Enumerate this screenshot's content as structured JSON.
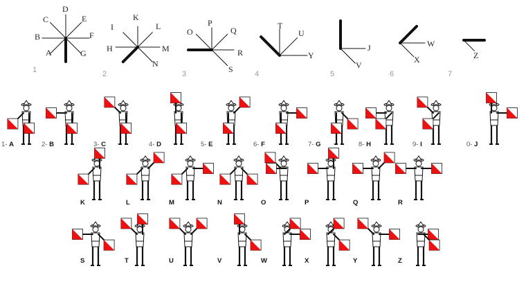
{
  "colors": {
    "flag_red": "#ee1111",
    "line": "#111111",
    "group_number": "#9a9a9a"
  },
  "direction_diagrams": [
    {
      "group": "1",
      "hand": "D",
      "letters": [
        "C",
        "D",
        "E",
        "B",
        "F",
        "A",
        "G"
      ]
    },
    {
      "group": "2",
      "hand": "K",
      "letters": [
        "I",
        "K",
        "L",
        "H",
        "M",
        "N"
      ]
    },
    {
      "group": "3",
      "hand": "P",
      "letters": [
        "O",
        "P",
        "Q",
        "R",
        "S"
      ]
    },
    {
      "group": "4",
      "hand": "T",
      "letters": [
        "T",
        "U",
        "Y"
      ]
    },
    {
      "group": "5",
      "hand": "J",
      "letters": [
        "J",
        "V"
      ]
    },
    {
      "group": "6",
      "hand": "W",
      "letters": [
        "W",
        "X"
      ]
    },
    {
      "group": "7",
      "hand": "Z",
      "letters": [
        "Z"
      ]
    }
  ],
  "semaphore_rows": [
    [
      {
        "num": "1-",
        "letter": "A"
      },
      {
        "num": "2-",
        "letter": "B"
      },
      {
        "num": "3-",
        "letter": "C"
      },
      {
        "num": "4-",
        "letter": "D"
      },
      {
        "num": "5-",
        "letter": "E"
      },
      {
        "num": "6-",
        "letter": "F"
      },
      {
        "num": "7-",
        "letter": "G"
      },
      {
        "num": "8-",
        "letter": "H"
      },
      {
        "num": "9-",
        "letter": "I"
      },
      {
        "num": "0-",
        "letter": "J"
      }
    ],
    [
      {
        "num": "",
        "letter": "K"
      },
      {
        "num": "",
        "letter": "L"
      },
      {
        "num": "",
        "letter": "M"
      },
      {
        "num": "",
        "letter": "N"
      },
      {
        "num": "",
        "letter": "O"
      },
      {
        "num": "",
        "letter": "P"
      },
      {
        "num": "",
        "letter": "Q"
      },
      {
        "num": "",
        "letter": "R"
      }
    ],
    [
      {
        "num": "",
        "letter": "S"
      },
      {
        "num": "",
        "letter": "T"
      },
      {
        "num": "",
        "letter": "U"
      },
      {
        "num": "",
        "letter": "V"
      },
      {
        "num": "",
        "letter": "W"
      },
      {
        "num": "",
        "letter": "X"
      },
      {
        "num": "",
        "letter": "Y"
      },
      {
        "num": "",
        "letter": "Z"
      }
    ]
  ]
}
